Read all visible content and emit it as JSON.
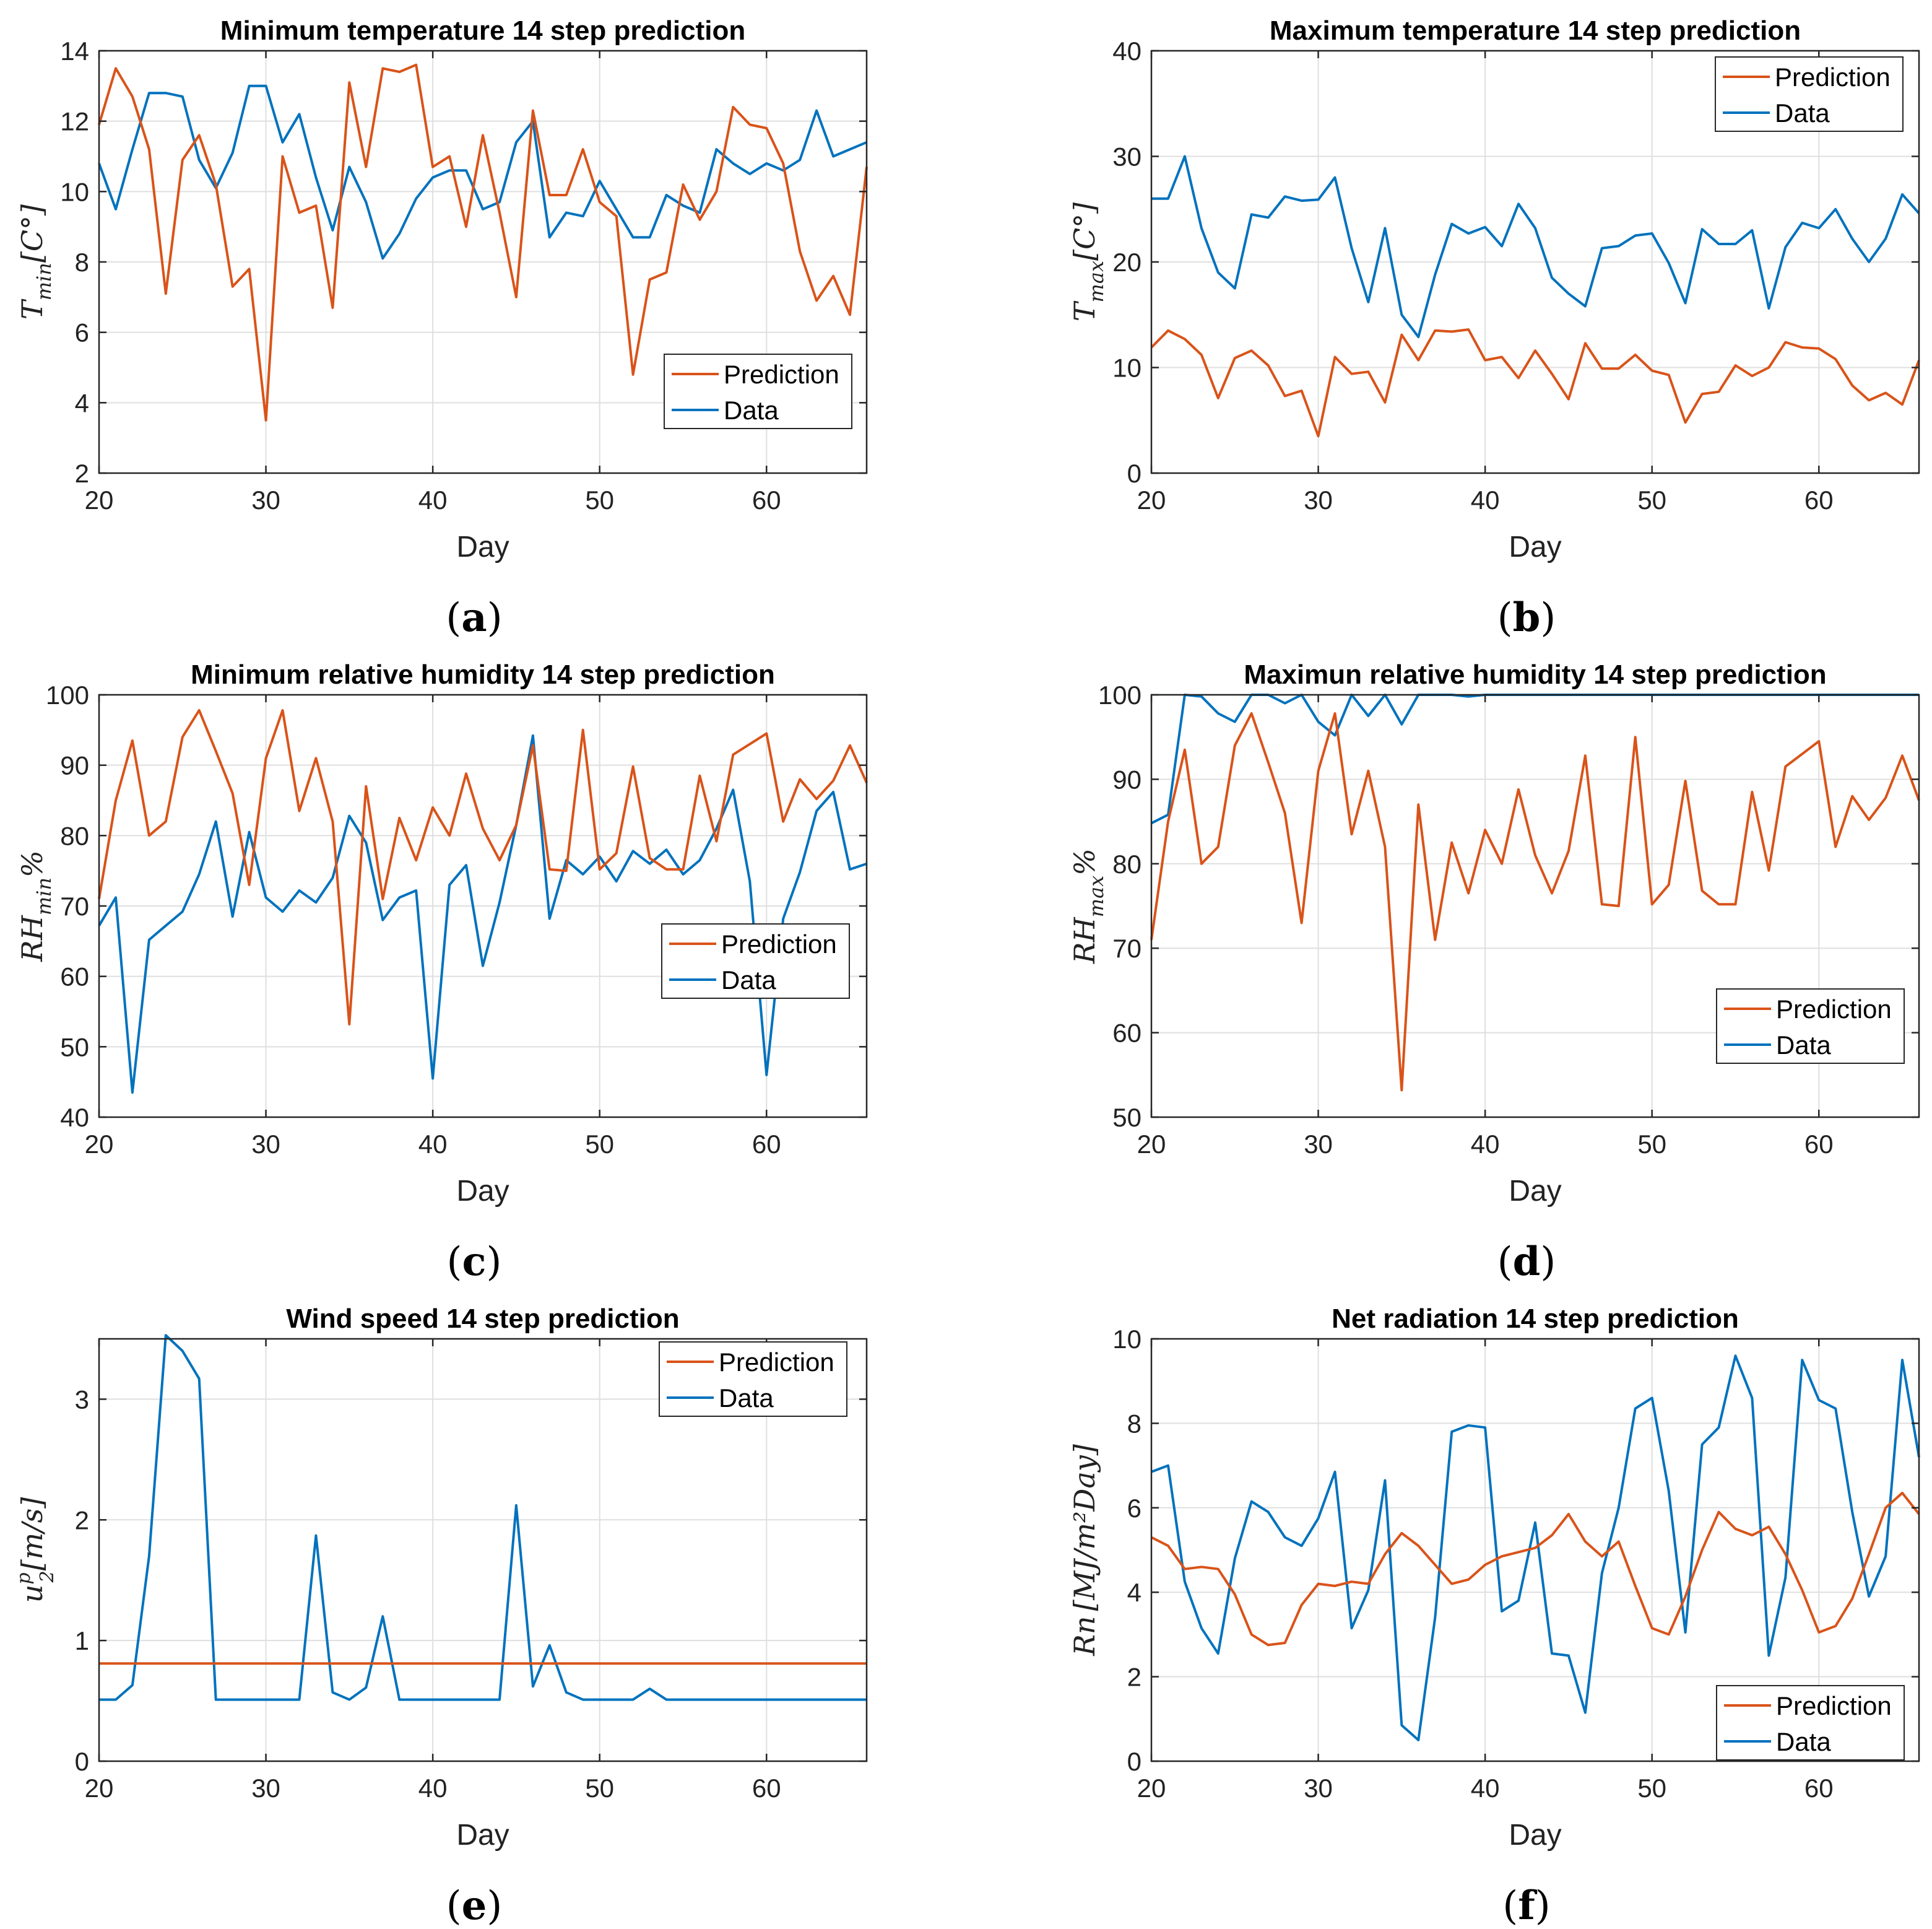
{
  "colors": {
    "prediction": "#D95319",
    "data": "#0072BD"
  },
  "chart_data": [
    {
      "type": "line",
      "panel_label": "a",
      "title": "Minimum temperature 14 step prediction",
      "xlabel": "Day",
      "ylabel": "T_min[C°]",
      "ylabel_base": "T",
      "ylabel_sub": "min",
      "ylabel_rest": "[C°]",
      "xlim": [
        20,
        66
      ],
      "ylim": [
        2,
        14
      ],
      "xticks": [
        20,
        30,
        40,
        50,
        60
      ],
      "yticks": [
        2,
        4,
        6,
        8,
        10,
        12,
        14
      ],
      "legend_position": "bottom-right",
      "x": [
        20,
        21,
        22,
        23,
        24,
        25,
        26,
        27,
        28,
        29,
        30,
        31,
        32,
        33,
        34,
        35,
        36,
        37,
        38,
        39,
        40,
        41,
        42,
        43,
        44,
        45,
        46,
        47,
        48,
        49,
        50,
        51,
        52,
        53,
        54,
        55,
        56,
        57,
        58,
        59,
        60,
        61,
        62,
        63,
        64,
        65,
        66
      ],
      "series": [
        {
          "name": "Prediction",
          "values": [
            11.9,
            13.5,
            12.7,
            11.2,
            7.1,
            10.9,
            11.6,
            10.2,
            7.3,
            7.8,
            3.5,
            11.0,
            9.4,
            9.6,
            6.7,
            13.1,
            10.7,
            13.5,
            13.4,
            13.6,
            10.7,
            11.0,
            9.0,
            11.6,
            9.4,
            7.0,
            12.3,
            9.9,
            9.9,
            11.2,
            9.7,
            9.3,
            4.8,
            7.5,
            7.7,
            10.2,
            9.2,
            10.0,
            12.4,
            11.9,
            11.8,
            10.8,
            8.3,
            6.9,
            7.6,
            6.5,
            10.7
          ]
        },
        {
          "name": "Data",
          "values": [
            10.8,
            9.5,
            11.2,
            12.8,
            12.8,
            12.7,
            10.9,
            10.1,
            11.1,
            13.0,
            13.0,
            11.4,
            12.2,
            10.4,
            8.9,
            10.7,
            9.7,
            8.1,
            8.8,
            9.8,
            10.4,
            10.6,
            10.6,
            9.5,
            9.7,
            11.4,
            12.0,
            8.7,
            9.4,
            9.3,
            10.3,
            9.5,
            8.7,
            8.7,
            9.9,
            9.6,
            9.4,
            11.2,
            10.8,
            10.5,
            10.8,
            10.6,
            10.9,
            12.3,
            11.0,
            11.2,
            11.4
          ]
        }
      ]
    },
    {
      "type": "line",
      "panel_label": "b",
      "title": "Maximum temperature 14 step prediction",
      "xlabel": "Day",
      "ylabel": "T_max[C°]",
      "ylabel_base": "T",
      "ylabel_sub": "max",
      "ylabel_rest": "[C°]",
      "xlim": [
        20,
        66
      ],
      "ylim": [
        0,
        40
      ],
      "xticks": [
        20,
        30,
        40,
        50,
        60
      ],
      "yticks": [
        0,
        10,
        20,
        30,
        40
      ],
      "legend_position": "top-right",
      "x": [
        20,
        21,
        22,
        23,
        24,
        25,
        26,
        27,
        28,
        29,
        30,
        31,
        32,
        33,
        34,
        35,
        36,
        37,
        38,
        39,
        40,
        41,
        42,
        43,
        44,
        45,
        46,
        47,
        48,
        49,
        50,
        51,
        52,
        53,
        54,
        55,
        56,
        57,
        58,
        59,
        60,
        61,
        62,
        63,
        64,
        65,
        66
      ],
      "series": [
        {
          "name": "Prediction",
          "values": [
            11.9,
            13.5,
            12.7,
            11.2,
            7.1,
            10.9,
            11.6,
            10.2,
            7.3,
            7.8,
            3.5,
            11.0,
            9.4,
            9.6,
            6.7,
            13.1,
            10.7,
            13.5,
            13.4,
            13.6,
            10.7,
            11.0,
            9.0,
            11.6,
            9.4,
            7.0,
            12.3,
            9.9,
            9.9,
            11.2,
            9.7,
            9.3,
            4.8,
            7.5,
            7.7,
            10.2,
            9.2,
            10.0,
            12.4,
            11.9,
            11.8,
            10.8,
            8.3,
            6.9,
            7.6,
            6.5,
            10.7
          ]
        },
        {
          "name": "Data",
          "values": [
            26.0,
            26.0,
            30.0,
            23.2,
            19.0,
            17.5,
            24.5,
            24.2,
            26.2,
            25.8,
            25.9,
            28.0,
            21.3,
            16.2,
            23.2,
            15.0,
            12.9,
            18.8,
            23.6,
            22.7,
            23.3,
            21.5,
            25.5,
            23.2,
            18.5,
            17.0,
            15.8,
            21.3,
            21.5,
            22.5,
            22.7,
            19.9,
            16.1,
            23.1,
            21.7,
            21.7,
            23.0,
            15.6,
            21.4,
            23.7,
            23.2,
            25.0,
            22.2,
            20.0,
            22.2,
            26.4,
            24.6
          ]
        }
      ]
    },
    {
      "type": "line",
      "panel_label": "c",
      "title": "Minimum relative humidity 14 step prediction",
      "xlabel": "Day",
      "ylabel": "RH_min%",
      "ylabel_base": "RH",
      "ylabel_sub": "min",
      "ylabel_rest": "%",
      "xlim": [
        20,
        66
      ],
      "ylim": [
        40,
        100
      ],
      "xticks": [
        20,
        30,
        40,
        50,
        60
      ],
      "yticks": [
        40,
        50,
        60,
        70,
        80,
        90,
        100
      ],
      "legend_position": "middle-right",
      "x": [
        20,
        21,
        22,
        23,
        24,
        25,
        26,
        27,
        28,
        29,
        30,
        31,
        32,
        33,
        34,
        35,
        36,
        37,
        38,
        39,
        40,
        41,
        42,
        43,
        44,
        45,
        46,
        47,
        48,
        49,
        50,
        51,
        52,
        53,
        54,
        55,
        56,
        57,
        58,
        59,
        60,
        61,
        62,
        63,
        64,
        65,
        66
      ],
      "series": [
        {
          "name": "Prediction",
          "values": [
            71.0,
            85.0,
            93.5,
            80.0,
            82.0,
            94.0,
            97.8,
            92.0,
            86.0,
            73.0,
            91.0,
            97.8,
            83.5,
            91.0,
            82.0,
            53.2,
            87.0,
            71.0,
            82.5,
            76.5,
            84.0,
            80.0,
            88.8,
            81.0,
            76.5,
            81.5,
            92.8,
            75.2,
            75.0,
            95.0,
            75.2,
            77.5,
            89.8,
            76.8,
            75.2,
            75.2,
            88.5,
            79.2,
            91.5,
            93.0,
            94.5,
            82.0,
            88.0,
            85.2,
            87.8,
            92.8,
            87.5
          ]
        },
        {
          "name": "Data",
          "values": [
            67.2,
            71.2,
            43.5,
            65.2,
            67.2,
            69.2,
            74.5,
            82.0,
            68.5,
            80.5,
            71.2,
            69.2,
            72.2,
            70.5,
            74.0,
            82.8,
            79.0,
            68.0,
            71.2,
            72.2,
            45.5,
            73.0,
            75.8,
            61.5,
            70.5,
            81.5,
            94.2,
            68.2,
            76.5,
            74.5,
            77.0,
            73.5,
            77.8,
            76.0,
            78.0,
            74.5,
            76.5,
            81.0,
            86.5,
            73.5,
            46.0,
            68.2,
            74.8,
            83.5,
            86.2,
            75.2,
            76.0
          ]
        }
      ]
    },
    {
      "type": "line",
      "panel_label": "d",
      "title": "Maximun relative humidity 14 step prediction",
      "xlabel": "Day",
      "ylabel": "RH_max%",
      "ylabel_base": "RH",
      "ylabel_sub": "max",
      "ylabel_rest": "%",
      "xlim": [
        20,
        66
      ],
      "ylim": [
        50,
        100
      ],
      "xticks": [
        20,
        30,
        40,
        50,
        60
      ],
      "yticks": [
        50,
        60,
        70,
        80,
        90,
        100
      ],
      "legend_position": "bottom-right",
      "x": [
        20,
        21,
        22,
        23,
        24,
        25,
        26,
        27,
        28,
        29,
        30,
        31,
        32,
        33,
        34,
        35,
        36,
        37,
        38,
        39,
        40,
        41,
        42,
        43,
        44,
        45,
        46,
        47,
        48,
        49,
        50,
        51,
        52,
        53,
        54,
        55,
        56,
        57,
        58,
        59,
        60,
        61,
        62,
        63,
        64,
        65,
        66
      ],
      "series": [
        {
          "name": "Prediction",
          "values": [
            71.0,
            85.0,
            93.5,
            80.0,
            82.0,
            94.0,
            97.8,
            92.0,
            86.0,
            73.0,
            91.0,
            97.8,
            83.5,
            91.0,
            82.0,
            53.2,
            87.0,
            71.0,
            82.5,
            76.5,
            84.0,
            80.0,
            88.8,
            81.0,
            76.5,
            81.5,
            92.8,
            75.2,
            75.0,
            95.0,
            75.2,
            77.5,
            89.8,
            76.8,
            75.2,
            75.2,
            88.5,
            79.2,
            91.5,
            93.0,
            94.5,
            82.0,
            88.0,
            85.2,
            87.8,
            92.8,
            87.5
          ]
        },
        {
          "name": "Data",
          "values": [
            84.8,
            85.8,
            100.0,
            99.8,
            97.8,
            96.8,
            100.0,
            100.0,
            99.0,
            100.0,
            96.8,
            95.2,
            100.0,
            97.5,
            100.0,
            96.5,
            100.0,
            100.0,
            100.0,
            99.8,
            100.0,
            100.0,
            100.0,
            100.0,
            100.0,
            100.0,
            100.0,
            100.0,
            100.0,
            100.0,
            100.0,
            100.0,
            100.0,
            100.0,
            100.0,
            100.0,
            100.0,
            100.0,
            100.0,
            100.0,
            100.0,
            100.0,
            100.0,
            100.0,
            100.0,
            100.0,
            100.0
          ]
        }
      ]
    },
    {
      "type": "line",
      "panel_label": "e",
      "title": "Wind speed 14 step prediction",
      "xlabel": "Day",
      "ylabel": "u2^p[m/s]",
      "ylabel_base": "u",
      "ylabel_sub": "2",
      "ylabel_sup": "p",
      "ylabel_rest": "[m/s]",
      "xlim": [
        20,
        66
      ],
      "ylim": [
        0,
        3.5
      ],
      "xticks": [
        20,
        30,
        40,
        50,
        60
      ],
      "yticks": [
        0,
        1,
        2,
        3
      ],
      "legend_position": "top-right",
      "x": [
        20,
        21,
        22,
        23,
        24,
        25,
        26,
        27,
        28,
        29,
        30,
        31,
        32,
        33,
        34,
        35,
        36,
        37,
        38,
        39,
        40,
        41,
        42,
        43,
        44,
        45,
        46,
        47,
        48,
        49,
        50,
        51,
        52,
        53,
        54,
        55,
        56,
        57,
        58,
        59,
        60,
        61,
        62,
        63,
        64,
        65,
        66
      ],
      "series": [
        {
          "name": "Prediction",
          "values": [
            0.81,
            0.81,
            0.81,
            0.81,
            0.81,
            0.81,
            0.81,
            0.81,
            0.81,
            0.81,
            0.81,
            0.81,
            0.81,
            0.81,
            0.81,
            0.81,
            0.81,
            0.81,
            0.81,
            0.81,
            0.81,
            0.81,
            0.81,
            0.81,
            0.81,
            0.81,
            0.81,
            0.81,
            0.81,
            0.81,
            0.81,
            0.81,
            0.81,
            0.81,
            0.81,
            0.81,
            0.81,
            0.81,
            0.81,
            0.81,
            0.81,
            0.81,
            0.81,
            0.81,
            0.81,
            0.81,
            0.81
          ]
        },
        {
          "name": "Data",
          "values": [
            0.51,
            0.51,
            0.63,
            1.7,
            3.53,
            3.4,
            3.17,
            0.51,
            0.51,
            0.51,
            0.51,
            0.51,
            0.51,
            1.87,
            0.57,
            0.51,
            0.61,
            1.2,
            0.51,
            0.51,
            0.51,
            0.51,
            0.51,
            0.51,
            0.51,
            2.12,
            0.62,
            0.96,
            0.57,
            0.51,
            0.51,
            0.51,
            0.51,
            0.6,
            0.51,
            0.51,
            0.51,
            0.51,
            0.51,
            0.51,
            0.51,
            0.51,
            0.51,
            0.51,
            0.51,
            0.51,
            0.51
          ]
        }
      ]
    },
    {
      "type": "line",
      "panel_label": "f",
      "title": "Net radiation 14 step prediction",
      "xlabel": "Day",
      "ylabel": "Rn[MJ/(m²Day)]",
      "ylabel_base": "Rn",
      "ylabel_rest": "[MJ/m²Day]",
      "xlim": [
        20,
        66
      ],
      "ylim": [
        0,
        10
      ],
      "xticks": [
        20,
        30,
        40,
        50,
        60
      ],
      "yticks": [
        0,
        2,
        4,
        6,
        8,
        10
      ],
      "legend_position": "bottom-right",
      "x": [
        20,
        21,
        22,
        23,
        24,
        25,
        26,
        27,
        28,
        29,
        30,
        31,
        32,
        33,
        34,
        35,
        36,
        37,
        38,
        39,
        40,
        41,
        42,
        43,
        44,
        45,
        46,
        47,
        48,
        49,
        50,
        51,
        52,
        53,
        54,
        55,
        56,
        57,
        58,
        59,
        60,
        61,
        62,
        63,
        64,
        65,
        66
      ],
      "series": [
        {
          "name": "Prediction",
          "values": [
            5.3,
            5.1,
            4.55,
            4.6,
            4.55,
            3.95,
            3.0,
            2.75,
            2.8,
            3.7,
            4.2,
            4.15,
            4.25,
            4.2,
            4.9,
            5.4,
            5.1,
            4.65,
            4.2,
            4.3,
            4.65,
            4.85,
            4.95,
            5.05,
            5.35,
            5.85,
            5.2,
            4.85,
            5.2,
            4.15,
            3.15,
            3.0,
            3.9,
            5.0,
            5.9,
            5.5,
            5.35,
            5.55,
            4.9,
            4.05,
            3.05,
            3.2,
            3.85,
            4.9,
            6.0,
            6.35,
            5.85
          ]
        },
        {
          "name": "Data",
          "values": [
            6.85,
            7.0,
            4.25,
            3.15,
            2.55,
            4.8,
            6.15,
            5.9,
            5.3,
            5.1,
            5.75,
            6.85,
            3.15,
            4.05,
            6.65,
            0.85,
            0.5,
            3.4,
            7.8,
            7.95,
            7.9,
            3.55,
            3.8,
            5.65,
            2.55,
            2.5,
            1.15,
            4.45,
            6.0,
            8.35,
            8.6,
            6.4,
            3.05,
            7.5,
            7.9,
            9.6,
            8.6,
            2.5,
            4.35,
            9.5,
            8.55,
            8.35,
            5.9,
            3.9,
            4.85,
            9.5,
            7.2
          ]
        }
      ]
    }
  ]
}
